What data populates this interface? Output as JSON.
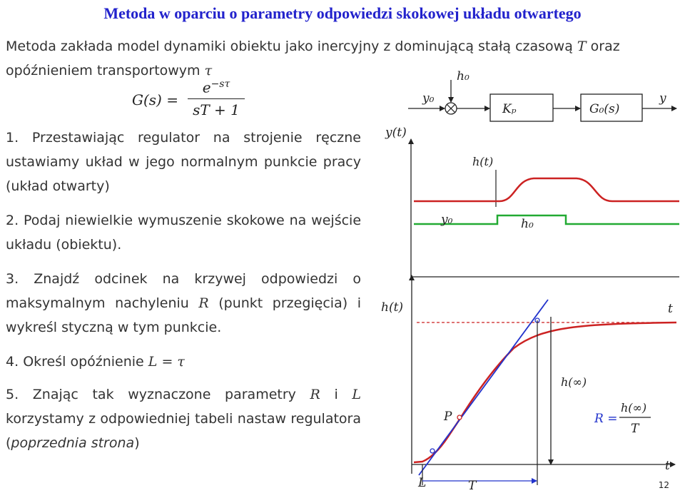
{
  "title": "Metoda w oparciu o parametry odpowiedzi skokowej układu otwartego",
  "intro": {
    "line1_prefix": "Metoda zakłada model dynamiki obiektu  jako inercyjny z dominującą stałą czasową ",
    "sym_T": "T",
    "line1_suffix": " oraz",
    "line2_prefix": "opóźnieniem transportowym ",
    "sym_tau": "τ"
  },
  "formula": {
    "lhs": "G(s) =",
    "numerator": "e",
    "numerator_exp": "−sτ",
    "denominator": "sT + 1"
  },
  "steps": [
    {
      "number": "1.",
      "text": "Przestawiając regulator na strojenie ręczne ustawiamy układ w jego normalnym punkcie pracy (układ otwarty)"
    },
    {
      "number": "2.",
      "text": "Podaj niewielkie wymuszenie skokowe na wejście układu (obiektu)."
    },
    {
      "number": "3.",
      "text_a": "Znajdź odcinek na krzywej odpowiedzi o maksymalnym nachyleniu ",
      "sym": "R",
      "text_b": " (punkt przegięcia) i wykreśl styczną w tym punkcie."
    },
    {
      "number": "4.",
      "text": "Określ opóźnienie ",
      "formula": "L = τ"
    },
    {
      "number": "5.",
      "text_a": "Znając tak wyznaczone parametry ",
      "sym1": "R",
      "text_mid": " i ",
      "sym2": "L",
      "text_b": " korzystamy z odpowiedniej tabeli nastaw regulatora (",
      "italic": "poprzednia strona",
      "text_c": ")"
    }
  ],
  "block_diagram": {
    "input_label": "y₀",
    "disturbance_label": "h₀",
    "block1_label": "Kₚ",
    "block2_label": "G₀(s)",
    "output_label": "y"
  },
  "signal_plot": {
    "y_label": "y(t)",
    "h_label": "h(t)",
    "baseline_label": "y₀",
    "step_label": "h₀",
    "time_label": "t",
    "colors": {
      "response": "#cc2222",
      "step": "#22aa33"
    }
  },
  "response_plot": {
    "y_label": "h(t)",
    "time_label": "t",
    "inflection_label": "P",
    "steady_label": "h(∞)",
    "L_label": "L",
    "T_label": "T",
    "R_label": "R =",
    "R_num": "h(∞)",
    "R_den": "T",
    "colors": {
      "curve": "#cc2222",
      "tangent": "#2233cc",
      "asymptote": "#cc2222"
    }
  },
  "page_number": "12"
}
